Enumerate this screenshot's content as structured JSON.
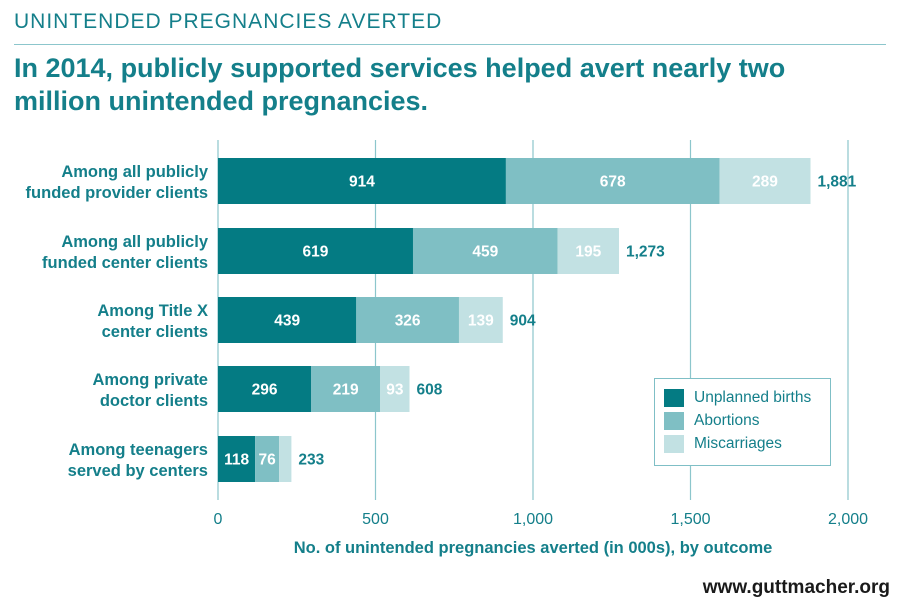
{
  "header": {
    "kicker": "UNINTENDED PREGNANCIES AVERTED",
    "headline": "In 2014, publicly supported services helped avert nearly two million unintended pregnancies."
  },
  "footer": {
    "site": "www.guttmacher.org"
  },
  "colors": {
    "unplanned_births": "#047b83",
    "abortions": "#7fbfc4",
    "miscarriages": "#c2e1e3",
    "text": "#147f8a",
    "grid": "#8cc6cc"
  },
  "chart_data": {
    "type": "bar",
    "orientation": "horizontal",
    "stacked": true,
    "categories": [
      [
        "Among all publicly",
        "funded provider clients"
      ],
      [
        "Among all publicly",
        "funded center clients"
      ],
      [
        "Among Title X",
        "center clients"
      ],
      [
        "Among private",
        "doctor clients"
      ],
      [
        "Among teenagers",
        "served by centers"
      ]
    ],
    "series": [
      {
        "name": "Unplanned births",
        "values": [
          914,
          619,
          439,
          296,
          118
        ],
        "labels": [
          "914",
          "619",
          "439",
          "296",
          "118"
        ]
      },
      {
        "name": "Abortions",
        "values": [
          678,
          459,
          326,
          219,
          76
        ],
        "labels": [
          "678",
          "459",
          "326",
          "219",
          "76"
        ]
      },
      {
        "name": "Miscarriages",
        "values": [
          289,
          195,
          139,
          93,
          39
        ],
        "labels": [
          "289",
          "195",
          "139",
          "93",
          ""
        ]
      }
    ],
    "totals": [
      "1,881",
      "1,273",
      "904",
      "608",
      "233"
    ],
    "total_values": [
      1881,
      1273,
      904,
      608,
      233
    ],
    "xlabel": "No. of unintended pregnancies averted (in 000s), by outcome",
    "xlim": [
      0,
      2000
    ],
    "xticks": [
      0,
      500,
      1000,
      1500,
      2000
    ],
    "xtick_labels": [
      "0",
      "500",
      "1,000",
      "1,500",
      "2,000"
    ],
    "grid": "vertical",
    "legend_position": "bottom-right"
  }
}
